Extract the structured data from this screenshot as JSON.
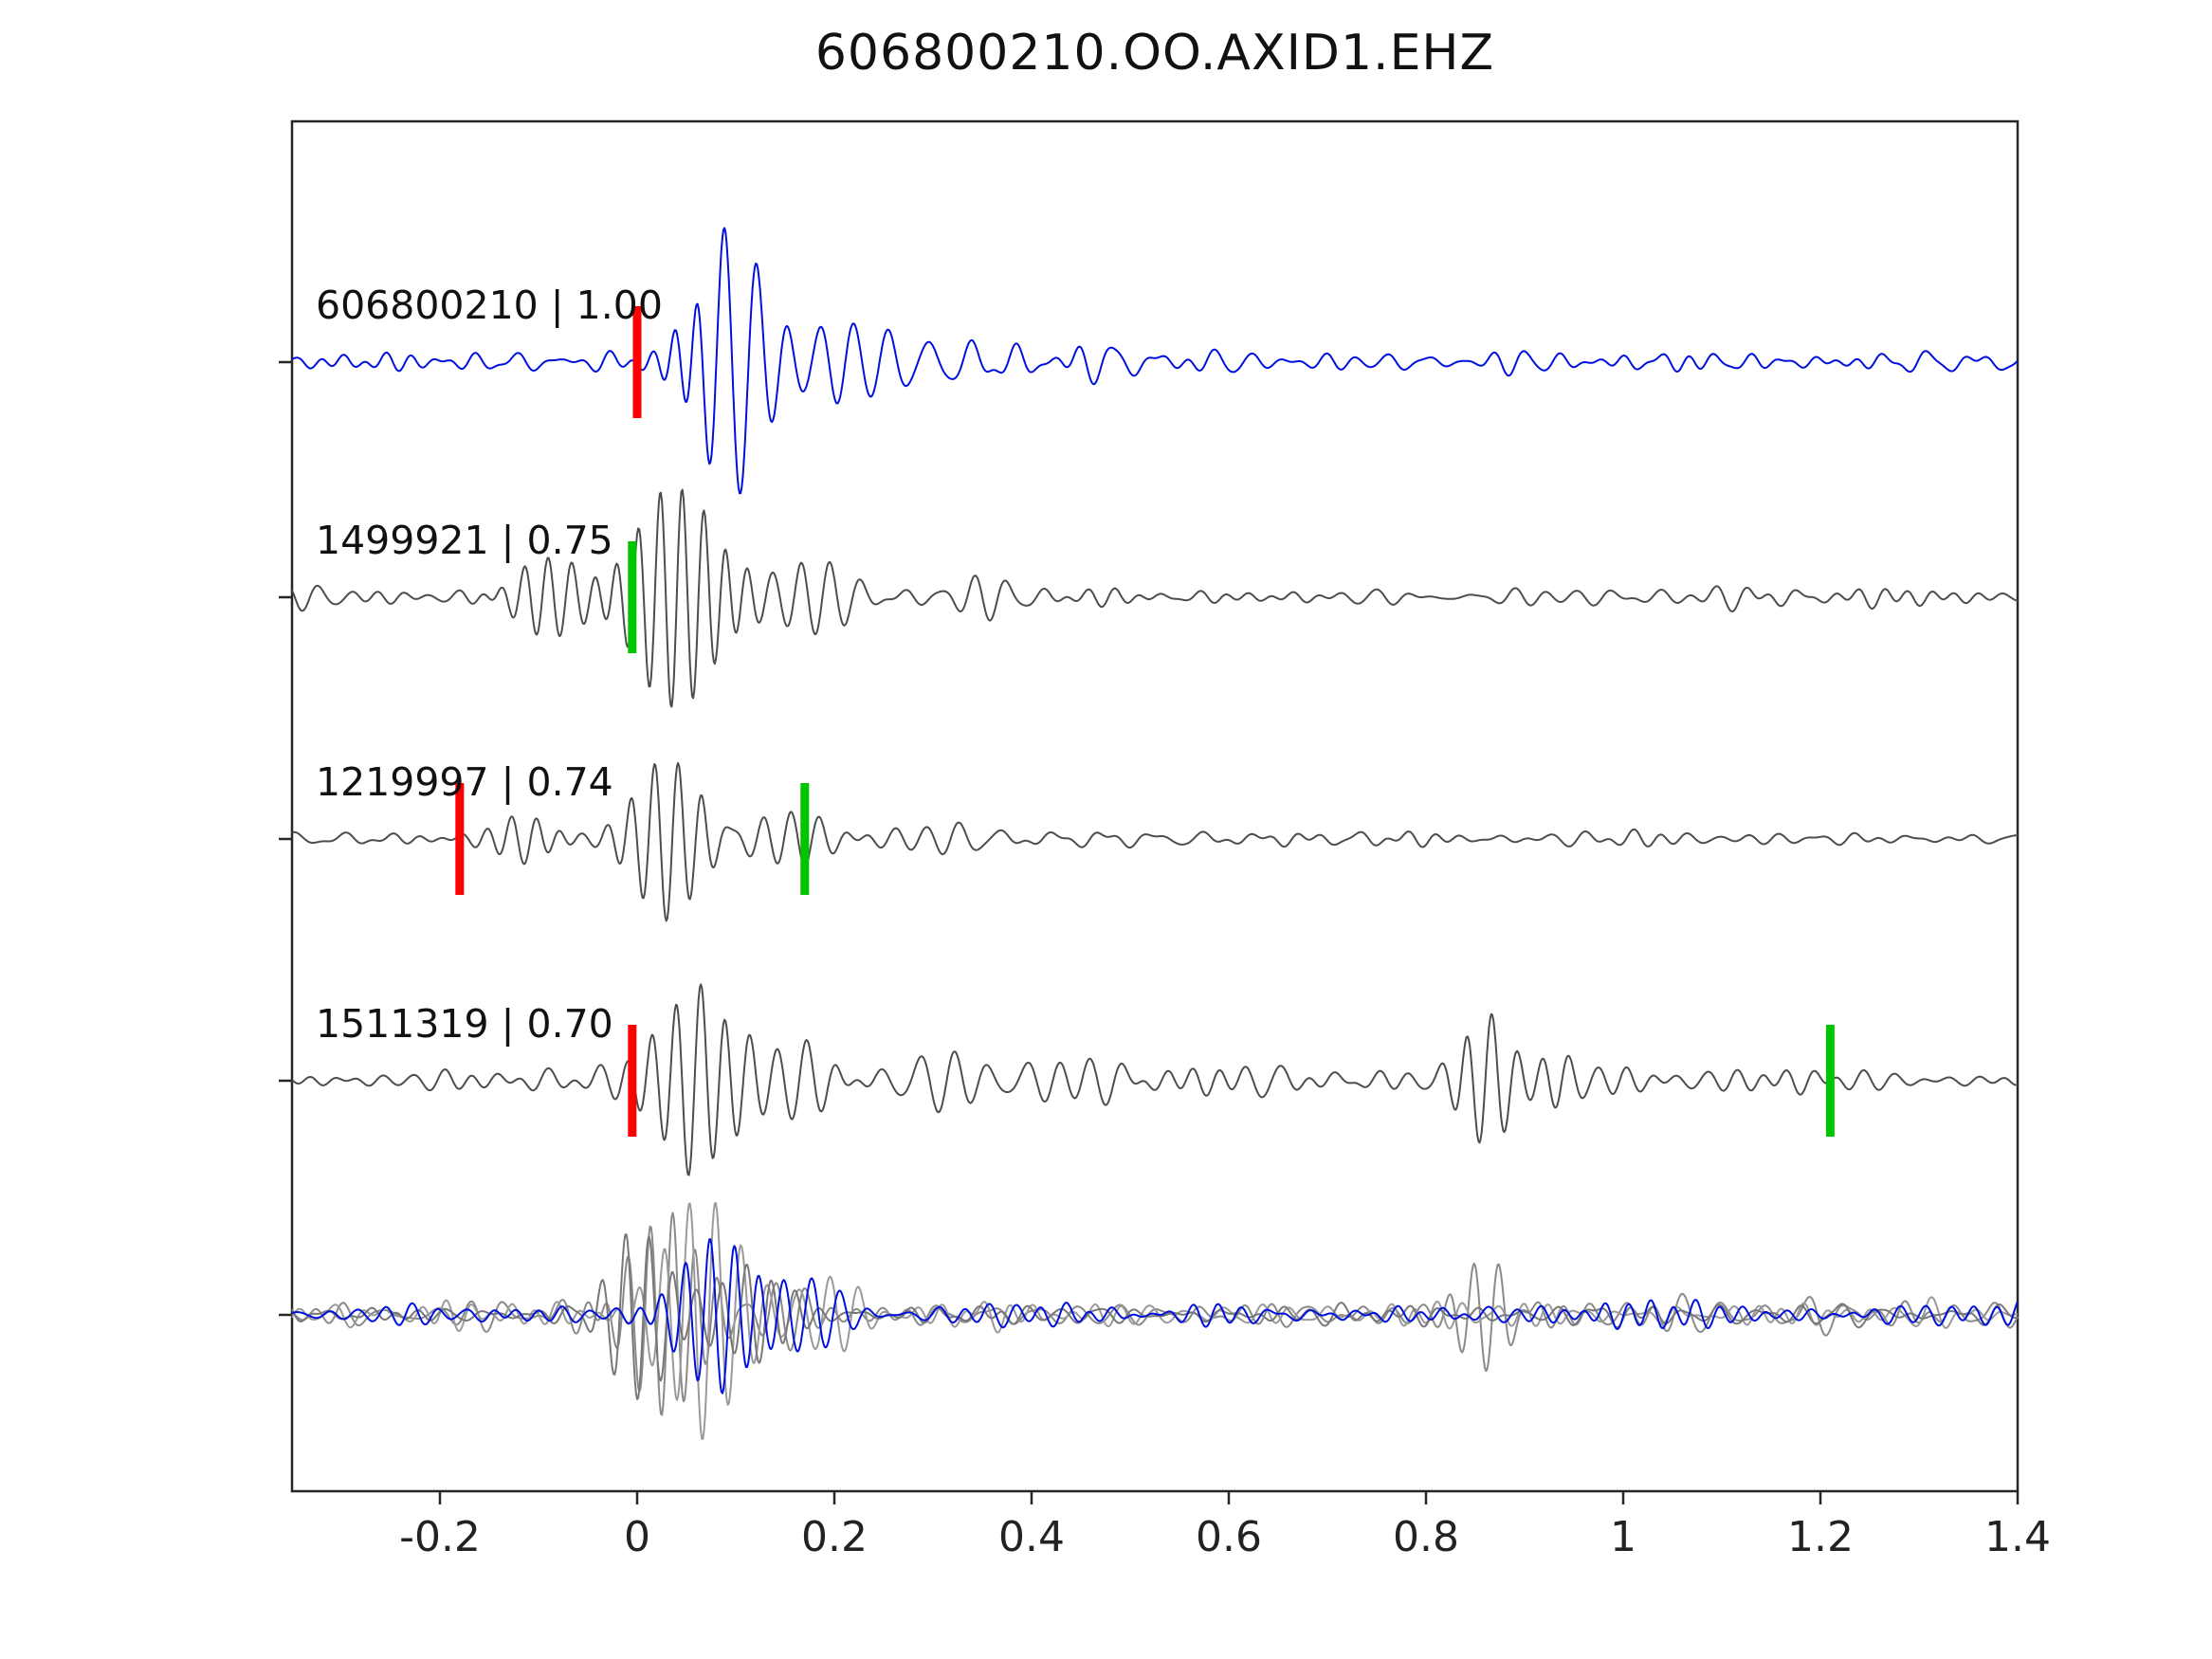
{
  "page": {
    "title": "606800210.OO.AXID1.EHZ"
  },
  "chart_data": {
    "type": "line",
    "title": "606800210.OO.AXID1.EHZ",
    "xlabel": "",
    "ylabel": "",
    "grid": false,
    "legend": "none",
    "xlim": [
      -0.35,
      1.4
    ],
    "x_ticks": [
      -0.2,
      0,
      0.2,
      0.4,
      0.6,
      0.8,
      1,
      1.2,
      1.4
    ],
    "x_tick_labels": [
      "-0.2",
      "0",
      "0.2",
      "0.4",
      "0.6",
      "0.8",
      "1",
      "1.2",
      "1.4"
    ],
    "colors": {
      "pick_red": "#ff0000",
      "pick_green": "#00c400",
      "trace_blue": "#0010dd",
      "trace_gray": "#4d4d4d",
      "axis": "#262626"
    },
    "traces": [
      {
        "id": "606800210",
        "label": "606800210 | 1.00",
        "correlation": 1.0,
        "color": "#0010dd",
        "baseline": 382,
        "seed": 101,
        "noise": {
          "amp": 5.5,
          "fmin": 18,
          "fmax": 48,
          "n": 26
        },
        "packets": [
          {
            "t0": 0.1,
            "sigma": 0.04,
            "amp": 145,
            "freq": 30
          },
          {
            "t0": 0.05,
            "sigma": 0.025,
            "amp": 60,
            "freq": 38
          },
          {
            "t0": 0.2,
            "sigma": 0.05,
            "amp": 45,
            "freq": 28
          },
          {
            "t0": 0.32,
            "sigma": 0.08,
            "amp": 18,
            "freq": 24
          }
        ],
        "markers": [
          {
            "x": 0.0,
            "color": "#ff0000"
          }
        ]
      },
      {
        "id": "1499921",
        "label": "1499921 | 0.75",
        "correlation": 0.75,
        "color": "#4d4d4d",
        "baseline": 630,
        "seed": 202,
        "noise": {
          "amp": 4.5,
          "fmin": 18,
          "fmax": 46,
          "n": 26
        },
        "packets": [
          {
            "t0": 0.04,
            "sigma": 0.055,
            "amp": 120,
            "freq": 45
          },
          {
            "t0": -0.09,
            "sigma": 0.045,
            "amp": 45,
            "freq": 42
          },
          {
            "t0": 0.18,
            "sigma": 0.05,
            "amp": 42,
            "freq": 34
          },
          {
            "t0": 0.33,
            "sigma": 0.09,
            "amp": 18,
            "freq": 28
          }
        ],
        "markers": [
          {
            "x": -0.005,
            "color": "#00c400"
          }
        ]
      },
      {
        "id": "1219997",
        "label": "1219997 | 0.74",
        "correlation": 0.74,
        "color": "#4d4d4d",
        "baseline": 885,
        "seed": 303,
        "noise": {
          "amp": 4.0,
          "fmin": 18,
          "fmax": 46,
          "n": 26
        },
        "packets": [
          {
            "t0": 0.03,
            "sigma": 0.045,
            "amp": 85,
            "freq": 42
          },
          {
            "t0": -0.11,
            "sigma": 0.04,
            "amp": 22,
            "freq": 40
          },
          {
            "t0": 0.16,
            "sigma": 0.05,
            "amp": 35,
            "freq": 36
          },
          {
            "t0": 0.3,
            "sigma": 0.08,
            "amp": 14,
            "freq": 30
          }
        ],
        "markers": [
          {
            "x": -0.18,
            "color": "#ff0000"
          },
          {
            "x": 0.17,
            "color": "#00c400"
          }
        ]
      },
      {
        "id": "1511319",
        "label": "1511319 | 0.70",
        "correlation": 0.7,
        "color": "#4d4d4d",
        "baseline": 1140,
        "seed": 404,
        "noise": {
          "amp": 6.5,
          "fmin": 16,
          "fmax": 44,
          "n": 28
        },
        "packets": [
          {
            "t0": 0.06,
            "sigma": 0.05,
            "amp": 100,
            "freq": 40
          },
          {
            "t0": 0.16,
            "sigma": 0.05,
            "amp": 45,
            "freq": 34
          },
          {
            "t0": 0.3,
            "sigma": 0.09,
            "amp": 20,
            "freq": 28
          },
          {
            "t0": 0.86,
            "sigma": 0.035,
            "amp": 62,
            "freq": 40
          },
          {
            "t0": 0.93,
            "sigma": 0.03,
            "amp": 30,
            "freq": 38
          }
        ],
        "markers": [
          {
            "x": -0.005,
            "color": "#ff0000"
          },
          {
            "x": 1.21,
            "color": "#00c400"
          }
        ]
      },
      {
        "id": "stack-gray-1",
        "label": "",
        "correlation": null,
        "color": "#8a8a8a",
        "baseline": 1387,
        "seed": 501,
        "noise": {
          "amp": 6.5,
          "fmin": 16,
          "fmax": 46,
          "n": 26
        },
        "packets": [
          {
            "t0": 0.03,
            "sigma": 0.05,
            "amp": 110,
            "freq": 44
          },
          {
            "t0": 0.15,
            "sigma": 0.05,
            "amp": 40,
            "freq": 34
          },
          {
            "t0": 0.86,
            "sigma": 0.035,
            "amp": 58,
            "freq": 40
          }
        ],
        "markers": []
      },
      {
        "id": "stack-gray-2",
        "label": "",
        "correlation": null,
        "color": "#9a9a9a",
        "baseline": 1387,
        "seed": 502,
        "noise": {
          "amp": 6.5,
          "fmin": 16,
          "fmax": 46,
          "n": 26
        },
        "packets": [
          {
            "t0": 0.07,
            "sigma": 0.055,
            "amp": 125,
            "freq": 38
          },
          {
            "t0": 0.2,
            "sigma": 0.05,
            "amp": 40,
            "freq": 32
          }
        ],
        "markers": []
      },
      {
        "id": "stack-gray-3",
        "label": "",
        "correlation": null,
        "color": "#787878",
        "baseline": 1387,
        "seed": 503,
        "noise": {
          "amp": 5.5,
          "fmin": 16,
          "fmax": 46,
          "n": 26
        },
        "packets": [
          {
            "t0": 0.0,
            "sigma": 0.04,
            "amp": 90,
            "freq": 42
          },
          {
            "t0": 0.12,
            "sigma": 0.05,
            "amp": 55,
            "freq": 40
          }
        ],
        "markers": []
      },
      {
        "id": "stack-blue",
        "label": "",
        "correlation": null,
        "color": "#0010dd",
        "baseline": 1387,
        "seed": 504,
        "noise": {
          "amp": 6.0,
          "fmin": 18,
          "fmax": 48,
          "n": 26
        },
        "packets": [
          {
            "t0": 0.08,
            "sigma": 0.05,
            "amp": 85,
            "freq": 40
          },
          {
            "t0": 0.18,
            "sigma": 0.05,
            "amp": 35,
            "freq": 34
          }
        ],
        "markers": []
      }
    ]
  }
}
